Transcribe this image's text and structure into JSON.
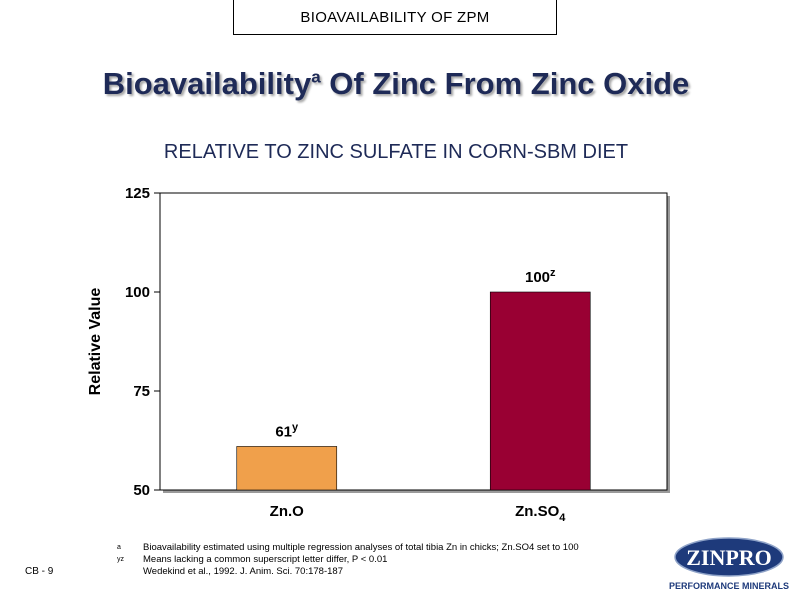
{
  "header": {
    "title": "BIOAVAILABILITY OF ZPM"
  },
  "title": {
    "main": "Bioavailability",
    "superscript": "a",
    "rest": " Of Zinc From Zinc Oxide"
  },
  "subtitle": "RELATIVE TO ZINC SULFATE IN CORN-SBM DIET",
  "chart_data": {
    "type": "bar",
    "categories": [
      "Zn.O",
      "Zn.SO4"
    ],
    "values": [
      61,
      100
    ],
    "data_labels": [
      "61",
      "100"
    ],
    "data_label_superscripts": [
      "y",
      "z"
    ],
    "colors": [
      "#f0a04b",
      "#990033"
    ],
    "ylabel": "Relative Value",
    "ylim": [
      50,
      125
    ],
    "yticks": [
      "50",
      "75",
      "100",
      "125"
    ],
    "grid": false,
    "legend": "none"
  },
  "footnotes": [
    {
      "mark": "a",
      "text": "Bioavailability estimated using multiple regression analyses of total tibia Zn in chicks; Zn.SO4 set to 100"
    },
    {
      "mark": "yz",
      "text": "Means lacking a common superscript letter differ, P < 0.01"
    },
    {
      "mark": "",
      "text": "Wedekind et al., 1992. J. Anim. Sci. 70:178-187"
    }
  ],
  "slide_number": "CB - 9",
  "logo": {
    "brand": "ZINPRO",
    "tagline": "PERFORMANCE MINERALS",
    "colors": [
      "#1e3a7b",
      "#ffffff"
    ]
  }
}
